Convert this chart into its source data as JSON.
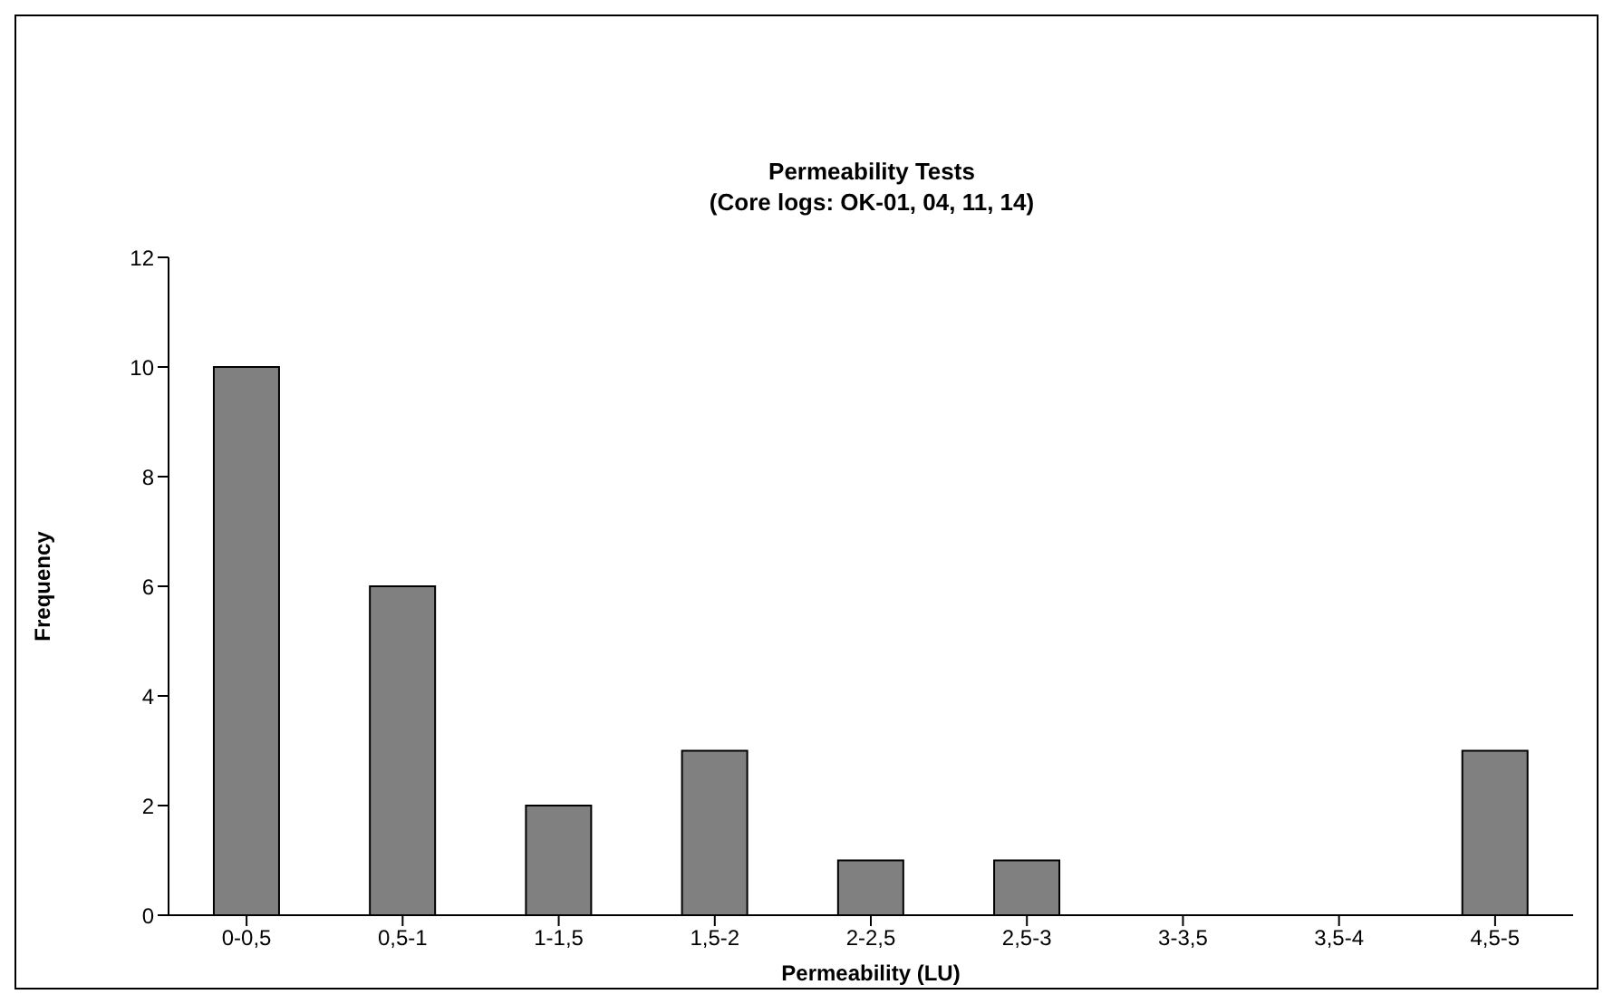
{
  "chart_data": {
    "type": "bar",
    "title": "Permeability Tests",
    "subtitle": "(Core logs: OK-01, 04, 11, 14)",
    "xlabel": "Permeability (LU)",
    "ylabel": "Frequency",
    "categories": [
      "0-0,5",
      "0,5-1",
      "1-1,5",
      "1,5-2",
      "2-2,5",
      "2,5-3",
      "3-3,5",
      "3,5-4",
      "4,5-5"
    ],
    "values": [
      10,
      6,
      2,
      3,
      1,
      1,
      0,
      0,
      3
    ],
    "color": "#808080",
    "ylim": [
      0,
      12
    ],
    "yticks": [
      0,
      2,
      4,
      6,
      8,
      10,
      12
    ]
  }
}
